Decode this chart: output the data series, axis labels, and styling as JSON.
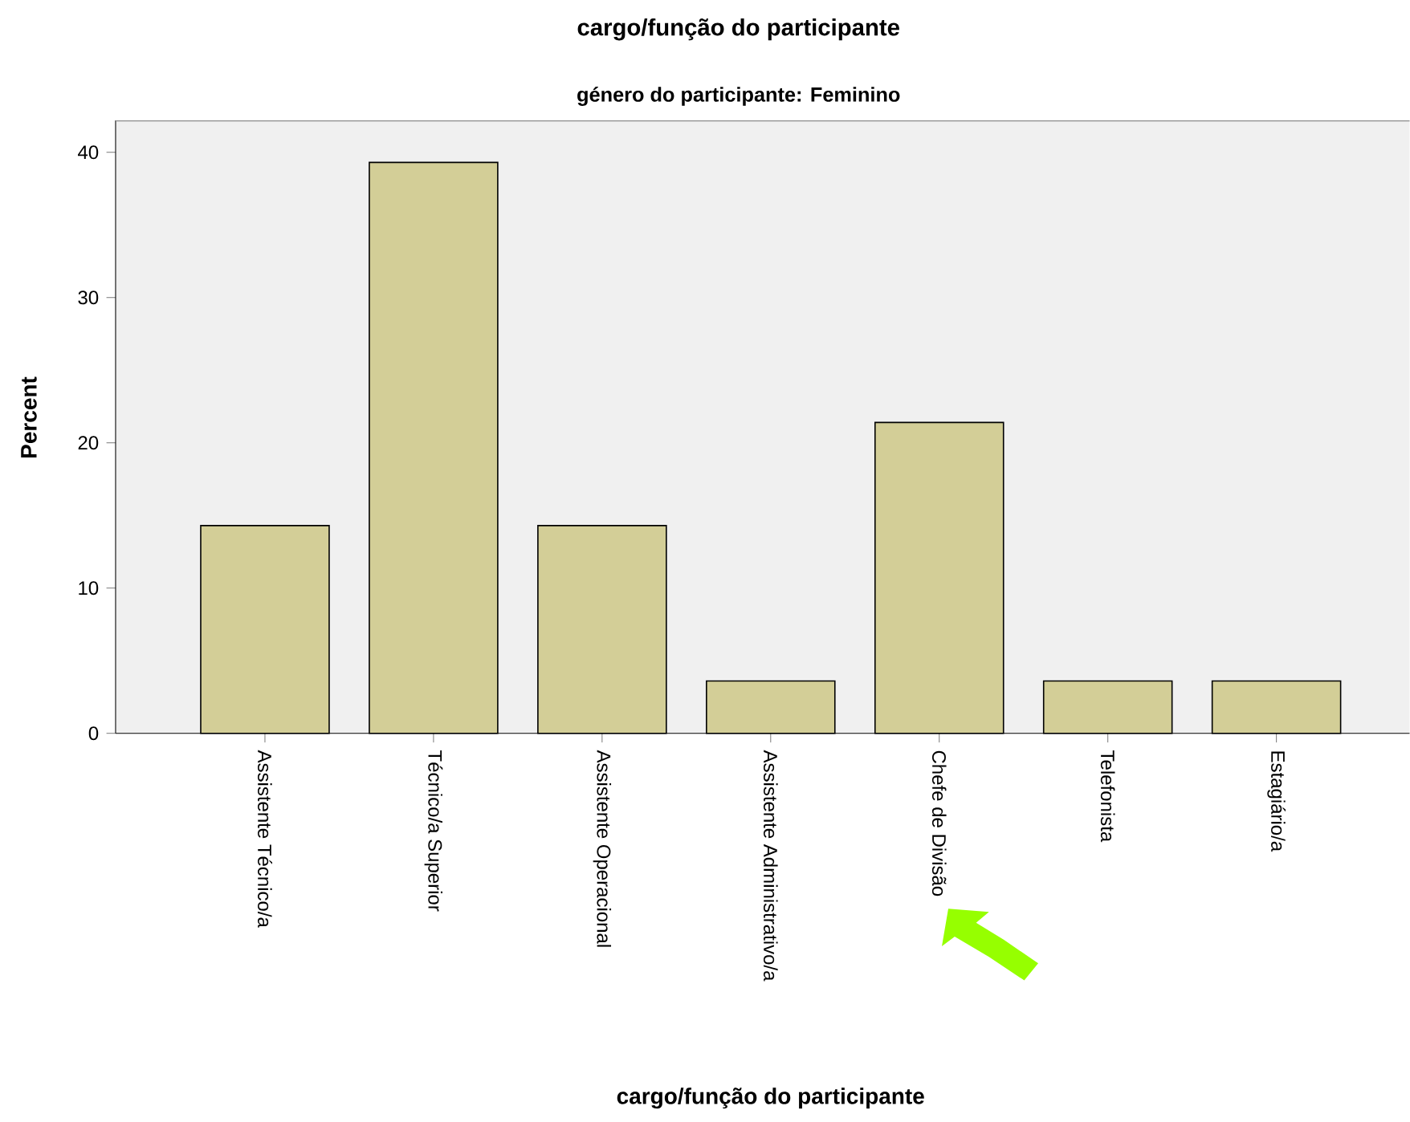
{
  "chart_data": {
    "type": "bar",
    "title": "cargo/função do participante",
    "subtitle": "género do participante: Feminino",
    "xlabel": "cargo/função do participante",
    "ylabel": "Percent",
    "categories": [
      "Assistente Técnico/a",
      "Técnico/a Superior",
      "Assistente Operacional",
      "Assistente Administrativo/a",
      "Chefe de Divisão",
      "Telefonista",
      "Estagiário/a"
    ],
    "values": [
      14.3,
      39.3,
      14.3,
      3.6,
      21.4,
      3.6,
      3.6
    ],
    "color": "#d3ce97",
    "ylim": [
      0,
      42.2
    ],
    "yticks": [
      0,
      10,
      20,
      30,
      40
    ]
  }
}
